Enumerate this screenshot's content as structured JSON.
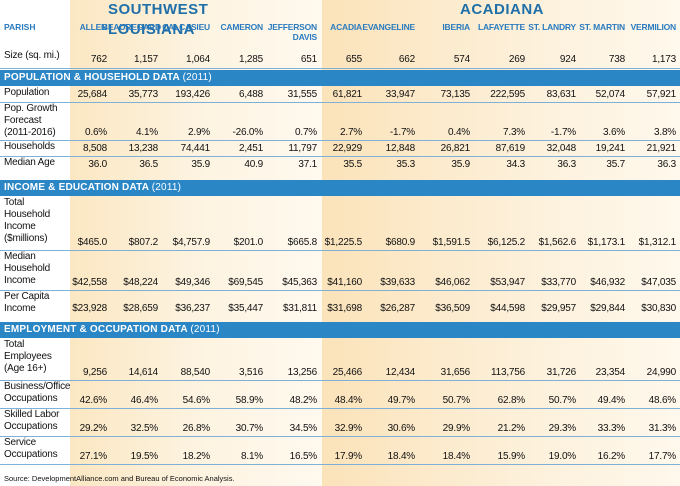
{
  "regions": {
    "sw": "SOUTHWEST LOUISIANA",
    "ac": "ACADIANA"
  },
  "parish_label": "PARISH",
  "columns": [
    "ALLEN",
    "BEAUREGARD",
    "CALCASIEU",
    "CAMERON",
    "JEFFERSON DAVIS",
    "ACADIA",
    "EVANGELINE",
    "IBERIA",
    "LAFAYETTE",
    "ST. LANDRY",
    "ST. MARTIN",
    "VERMILION"
  ],
  "size_row": {
    "label": "Size (sq. mi.)",
    "values": [
      "762",
      "1,157",
      "1,064",
      "1,285",
      "651",
      "655",
      "662",
      "574",
      "269",
      "924",
      "738",
      "1,173"
    ]
  },
  "sections": [
    {
      "title": "POPULATION & HOUSEHOLD DATA",
      "year": "(2011)",
      "rows": [
        {
          "label": "Population",
          "values": [
            "25,684",
            "35,773",
            "193,426",
            "6,488",
            "31,555",
            "61,821",
            "33,947",
            "73,135",
            "222,595",
            "83,631",
            "52,074",
            "57,921"
          ]
        },
        {
          "label": "Pop. Growth Forecast (2011-2016)",
          "values": [
            "0.6%",
            "4.1%",
            "2.9%",
            "-26.0%",
            "0.7%",
            "2.7%",
            "-1.7%",
            "0.4%",
            "7.3%",
            "-1.7%",
            "3.6%",
            "3.8%"
          ]
        },
        {
          "label": "Households",
          "values": [
            "8,508",
            "13,238",
            "74,441",
            "2,451",
            "11,797",
            "22,929",
            "12,848",
            "26,821",
            "87,619",
            "32,048",
            "19,241",
            "21,921"
          ]
        },
        {
          "label": "Median Age",
          "values": [
            "36.0",
            "36.5",
            "35.9",
            "40.9",
            "37.1",
            "35.5",
            "35.3",
            "35.9",
            "34.3",
            "36.3",
            "35.7",
            "36.3"
          ]
        }
      ]
    },
    {
      "title": "INCOME & EDUCATION DATA",
      "year": "(2011)",
      "rows": [
        {
          "label": "Total Household Income ($millions)",
          "values": [
            "$465.0",
            "$807.2",
            "$4,757.9",
            "$201.0",
            "$665.8",
            "$1,225.5",
            "$680.9",
            "$1,591.5",
            "$6,125.2",
            "$1,562.6",
            "$1,173.1",
            "$1,312.1"
          ]
        },
        {
          "label": "Median Household Income",
          "values": [
            "$42,558",
            "$48,224",
            "$49,346",
            "$69,545",
            "$45,363",
            "$41,160",
            "$39,633",
            "$46,062",
            "$53,947",
            "$33,770",
            "$46,932",
            "$47,035"
          ]
        },
        {
          "label": "Per Capita Income",
          "values": [
            "$23,928",
            "$28,659",
            "$36,237",
            "$35,447",
            "$31,811",
            "$31,698",
            "$26,287",
            "$36,509",
            "$44,598",
            "$29,957",
            "$29,844",
            "$30,830"
          ]
        }
      ]
    },
    {
      "title": "EMPLOYMENT & OCCUPATION DATA",
      "year": "(2011)",
      "rows": [
        {
          "label": "Total Employees (Age 16+)",
          "values": [
            "9,256",
            "14,614",
            "88,540",
            "3,516",
            "13,256",
            "25,466",
            "12,434",
            "31,656",
            "113,756",
            "31,726",
            "23,354",
            "24,990"
          ]
        },
        {
          "label": "Business/Office Occupations",
          "values": [
            "42.6%",
            "46.4%",
            "54.6%",
            "58.9%",
            "48.2%",
            "48.4%",
            "49.7%",
            "50.7%",
            "62.8%",
            "50.7%",
            "49.4%",
            "48.6%"
          ]
        },
        {
          "label": "Skilled Labor Occupations",
          "values": [
            "29.2%",
            "32.5%",
            "26.8%",
            "30.7%",
            "34.5%",
            "32.9%",
            "30.6%",
            "29.9%",
            "21.2%",
            "29.3%",
            "33.3%",
            "31.3%"
          ]
        },
        {
          "label": "Service Occupations",
          "values": [
            "27.1%",
            "19.5%",
            "18.2%",
            "8.1%",
            "16.5%",
            "17.9%",
            "18.4%",
            "18.4%",
            "15.9%",
            "19.0%",
            "16.2%",
            "17.7%"
          ]
        }
      ]
    }
  ],
  "source": "Source: DevelopmentAlliance.com and Bureau of Economic Analysis."
}
